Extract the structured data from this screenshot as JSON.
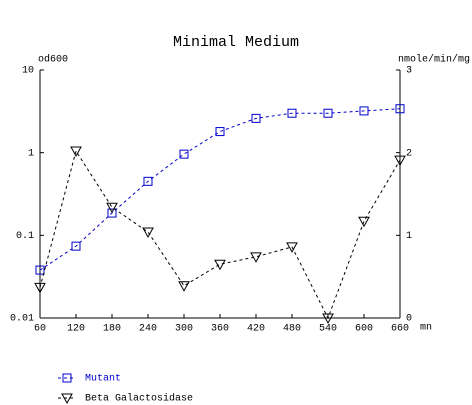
{
  "chart_data": {
    "type": "line",
    "title": "Minimal Medium",
    "x_label": "mn",
    "y_label": "od600",
    "y2_label": "nmole/min/mg",
    "x": [
      60,
      120,
      180,
      240,
      300,
      360,
      420,
      480,
      540,
      600,
      660
    ],
    "xlim": [
      60,
      660
    ],
    "xticks": [
      60,
      120,
      180,
      240,
      300,
      360,
      420,
      480,
      540,
      600,
      660
    ],
    "ylim": [
      0.01,
      10
    ],
    "yticks": [
      10,
      1,
      0.1,
      0.01
    ],
    "ylog": true,
    "y2lim": [
      0,
      3
    ],
    "y2ticks": [
      0,
      1,
      2,
      3
    ],
    "grid": false,
    "legend": "bottom-left",
    "series": [
      {
        "name": "Mutant",
        "color": "#0000cc",
        "marker": "square",
        "axis": "y",
        "values": [
          0.038,
          0.074,
          0.186,
          0.45,
          0.96,
          1.8,
          2.6,
          3.0,
          3.0,
          3.2,
          3.4
        ]
      },
      {
        "name": "Beta Galactosidase",
        "color": "#000000",
        "marker": "triangle-down",
        "axis": "y2",
        "values": [
          0.37,
          2.02,
          1.34,
          1.04,
          0.39,
          0.65,
          0.74,
          0.86,
          0,
          1.17,
          1.91
        ]
      }
    ]
  }
}
